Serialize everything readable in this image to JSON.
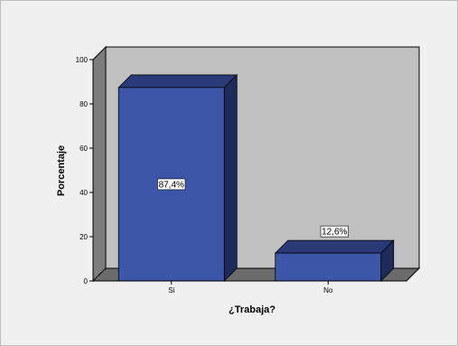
{
  "chart_data": {
    "type": "bar",
    "style": "3d",
    "categories": [
      "Si",
      "No"
    ],
    "values": [
      87.4,
      12.6
    ],
    "data_labels": [
      "87,4%",
      "12,6%"
    ],
    "xlabel": "¿Trabaja?",
    "ylabel": "Porcentaje",
    "ylim": [
      0,
      100
    ],
    "yticks": [
      0,
      20,
      40,
      60,
      80,
      100
    ],
    "grid": false,
    "legend": "none",
    "colors": {
      "bar_front": "#3d56a8",
      "bar_top": "#2a3a78",
      "bar_side": "#1e2a5a",
      "plot_back": "#c0c0c0",
      "plot_floor": "#6b6b6b",
      "plot_wall": "#7d7d7d",
      "panel": "#f0f0f0"
    }
  }
}
